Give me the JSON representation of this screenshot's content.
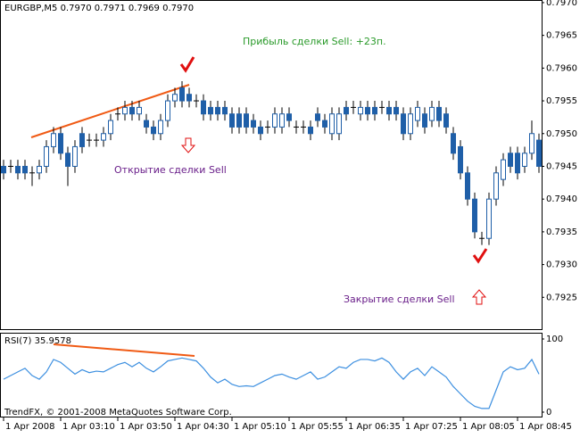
{
  "chart_data": [
    {
      "type": "candlestick",
      "title": "EURGBP,M5  0.7970 0.7971 0.7969 0.7970",
      "annotations": [
        "Прибыль сделки Sell: +23п.",
        "Открытие сделки Sell",
        "Закрытие сделки Sell"
      ],
      "categories": [
        "1 Apr 2008",
        null,
        null,
        null,
        null,
        null,
        null,
        null,
        "1 Apr 03:10",
        null,
        null,
        null,
        null,
        null,
        null,
        null,
        "1 Apr 03:50",
        null,
        null,
        null,
        null,
        null,
        null,
        null,
        "1 Apr 04:30",
        null,
        null,
        null,
        null,
        null,
        null,
        null,
        "1 Apr 05:10",
        null,
        null,
        null,
        null,
        null,
        null,
        null,
        "1 Apr 05:55",
        null,
        null,
        null,
        null,
        null,
        null,
        null,
        "1 Apr 06:35",
        null,
        null,
        null,
        null,
        null,
        null,
        null,
        "1 Apr 07:25",
        null,
        null,
        null,
        null,
        null,
        null,
        null,
        "1 Apr 08:05",
        null,
        null,
        null,
        null,
        null,
        null,
        null,
        "1 Apr 08:45",
        null,
        null,
        null
      ],
      "open": [
        0.7945,
        0.7945,
        0.7945,
        0.7945,
        0.7944,
        0.7944,
        0.7945,
        0.7948,
        0.795,
        0.7947,
        0.7945,
        0.795,
        0.7949,
        0.7949,
        0.7949,
        0.795,
        0.7953,
        0.7953,
        0.7954,
        0.7953,
        0.7952,
        0.7951,
        0.795,
        0.7952,
        0.7955,
        0.7957,
        0.7956,
        0.7955,
        0.7955,
        0.7954,
        0.7954,
        0.7954,
        0.7953,
        0.7953,
        0.7953,
        0.7952,
        0.7951,
        0.7951,
        0.7951,
        0.7951,
        0.7953,
        0.7951,
        0.7951,
        0.7951,
        0.7953,
        0.7952,
        0.795,
        0.795,
        0.7954,
        0.7954,
        0.7953,
        0.7954,
        0.7954,
        0.7954,
        0.7954,
        0.7954,
        0.7953,
        0.795,
        0.7952,
        0.7953,
        0.7952,
        0.7954,
        0.7953,
        0.795,
        0.7948,
        0.7944,
        0.794,
        0.7934,
        0.7934,
        0.794,
        0.7943,
        0.7947,
        0.7947,
        0.7945,
        0.7947,
        0.7949
      ],
      "high": [
        0.7946,
        0.7946,
        0.7946,
        0.7946,
        0.7945,
        0.7946,
        0.7949,
        0.7951,
        0.7951,
        0.7948,
        0.7949,
        0.7951,
        0.795,
        0.795,
        0.7951,
        0.7953,
        0.7954,
        0.7955,
        0.7955,
        0.7955,
        0.7953,
        0.7952,
        0.7953,
        0.7956,
        0.7957,
        0.7958,
        0.7957,
        0.7956,
        0.7956,
        0.7955,
        0.7955,
        0.7955,
        0.7954,
        0.7954,
        0.7954,
        0.7953,
        0.7952,
        0.7952,
        0.7954,
        0.7954,
        0.7954,
        0.7952,
        0.7952,
        0.7952,
        0.7954,
        0.7953,
        0.7954,
        0.7954,
        0.7955,
        0.7955,
        0.7955,
        0.7955,
        0.7955,
        0.7955,
        0.7955,
        0.7955,
        0.7954,
        0.7954,
        0.7955,
        0.7954,
        0.7955,
        0.7955,
        0.7954,
        0.7951,
        0.7949,
        0.7945,
        0.7941,
        0.7935,
        0.7941,
        0.7945,
        0.7947,
        0.7948,
        0.7948,
        0.7948,
        0.7952,
        0.795
      ],
      "low": [
        0.7943,
        0.7944,
        0.7943,
        0.7943,
        0.7942,
        0.7943,
        0.7944,
        0.7947,
        0.7946,
        0.7942,
        0.7944,
        0.7947,
        0.7948,
        0.7948,
        0.7948,
        0.7949,
        0.7952,
        0.7952,
        0.7952,
        0.7952,
        0.795,
        0.7949,
        0.7949,
        0.7951,
        0.7954,
        0.7954,
        0.7954,
        0.7954,
        0.7952,
        0.7952,
        0.7952,
        0.7952,
        0.795,
        0.795,
        0.795,
        0.795,
        0.7949,
        0.795,
        0.795,
        0.795,
        0.7951,
        0.795,
        0.795,
        0.7949,
        0.7951,
        0.795,
        0.7949,
        0.7949,
        0.7952,
        0.7953,
        0.7952,
        0.7952,
        0.7952,
        0.7953,
        0.7952,
        0.7952,
        0.7949,
        0.7949,
        0.7951,
        0.795,
        0.7951,
        0.7951,
        0.795,
        0.7946,
        0.7943,
        0.7939,
        0.7934,
        0.7933,
        0.7933,
        0.7939,
        0.7942,
        0.7944,
        0.7943,
        0.7944,
        0.7946,
        0.7944
      ],
      "close": [
        0.7944,
        0.7945,
        0.7944,
        0.7944,
        0.7944,
        0.7945,
        0.7948,
        0.795,
        0.7947,
        0.7945,
        0.7948,
        0.7948,
        0.7949,
        0.7949,
        0.795,
        0.7952,
        0.7953,
        0.7954,
        0.7953,
        0.7954,
        0.7951,
        0.795,
        0.7952,
        0.7955,
        0.7956,
        0.7955,
        0.7955,
        0.7955,
        0.7953,
        0.7953,
        0.7953,
        0.7953,
        0.7951,
        0.7951,
        0.7951,
        0.7951,
        0.795,
        0.7951,
        0.7953,
        0.7953,
        0.7952,
        0.7951,
        0.7951,
        0.795,
        0.7952,
        0.7951,
        0.7953,
        0.7953,
        0.7953,
        0.7954,
        0.7954,
        0.7953,
        0.7953,
        0.7954,
        0.7953,
        0.7953,
        0.795,
        0.7953,
        0.7954,
        0.7951,
        0.7954,
        0.7952,
        0.7951,
        0.7947,
        0.7944,
        0.794,
        0.7935,
        0.7934,
        0.794,
        0.7944,
        0.7946,
        0.7945,
        0.7944,
        0.7947,
        0.795,
        0.7945
      ],
      "color": "#1f5fa8",
      "ylim": [
        0.792,
        0.79704
      ],
      "yticks": [
        {
          "value": 0.797,
          "label": "0.7970"
        },
        {
          "value": 0.7965,
          "label": "0.7965"
        },
        {
          "value": 0.796,
          "label": "0.7960"
        },
        {
          "value": 0.7955,
          "label": "0.7955"
        },
        {
          "value": 0.795,
          "label": "0.7950"
        },
        {
          "value": 0.7945,
          "label": "0.7945"
        },
        {
          "value": 0.794,
          "label": "0.7940"
        },
        {
          "value": 0.7935,
          "label": "0.7935"
        },
        {
          "value": 0.793,
          "label": "0.7930"
        },
        {
          "value": 0.7925,
          "label": "0.7925"
        }
      ]
    },
    {
      "type": "line",
      "title": "RSI(7) 35.9578",
      "footer": "TrendFX, © 2001-2008 MetaQuotes Software Corp.",
      "color": "#3c8fe0",
      "values": [
        45,
        50,
        55,
        60,
        50,
        45,
        55,
        72,
        68,
        60,
        52,
        58,
        54,
        56,
        55,
        60,
        65,
        68,
        62,
        68,
        60,
        55,
        62,
        70,
        72,
        74,
        72,
        70,
        60,
        48,
        40,
        45,
        38,
        35,
        36,
        35,
        40,
        45,
        50,
        52,
        48,
        45,
        50,
        55,
        45,
        48,
        55,
        62,
        60,
        68,
        72,
        72,
        70,
        74,
        68,
        55,
        45,
        55,
        60,
        50,
        62,
        55,
        48,
        35,
        25,
        15,
        8,
        5,
        5,
        30,
        55,
        62,
        58,
        60,
        72,
        52
      ],
      "ylim": [
        0,
        100
      ],
      "yticks": [
        100,
        0
      ]
    }
  ]
}
